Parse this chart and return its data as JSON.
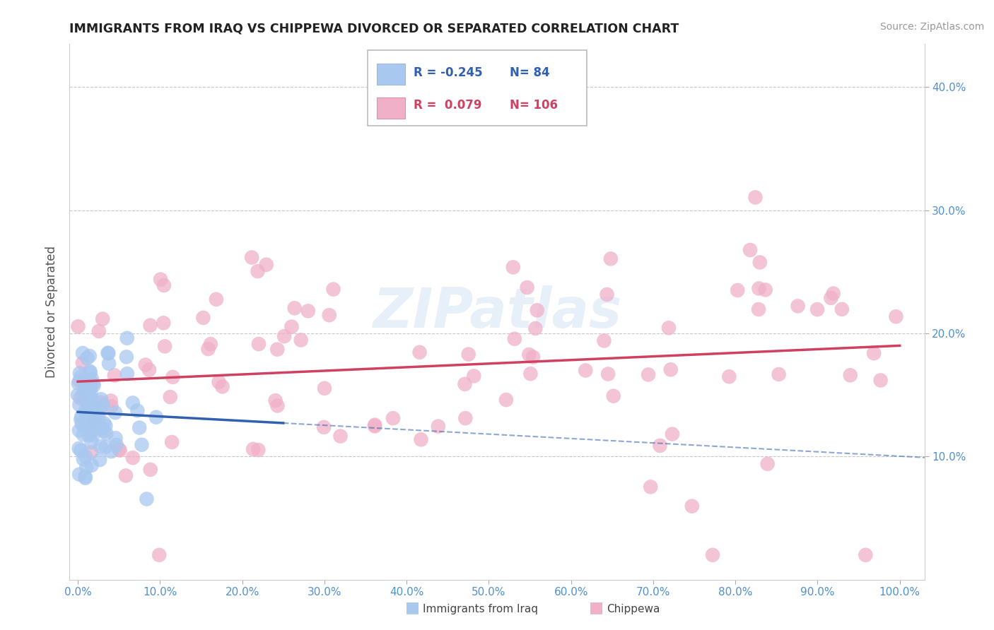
{
  "title": "IMMIGRANTS FROM IRAQ VS CHIPPEWA DIVORCED OR SEPARATED CORRELATION CHART",
  "source_text": "Source: ZipAtlas.com",
  "ylabel": "Divorced or Separated",
  "xlim": [
    0.0,
    1.0
  ],
  "ylim": [
    0.0,
    0.42
  ],
  "xticks": [
    0.0,
    0.1,
    0.2,
    0.3,
    0.4,
    0.5,
    0.6,
    0.7,
    0.8,
    0.9,
    1.0
  ],
  "xticklabels": [
    "0.0%",
    "10.0%",
    "20.0%",
    "30.0%",
    "40.0%",
    "50.0%",
    "60.0%",
    "70.0%",
    "80.0%",
    "90.0%",
    "100.0%"
  ],
  "yticks": [
    0.1,
    0.2,
    0.3,
    0.4
  ],
  "yticklabels": [
    "10.0%",
    "20.0%",
    "30.0%",
    "40.0%"
  ],
  "grid_color": "#c8c8c8",
  "iraq_color": "#a8c8f0",
  "chippewa_color": "#f0b0c8",
  "iraq_line_color": "#3060b0",
  "chippewa_line_color": "#d04060",
  "tick_color": "#5090d0",
  "legend_iraq_r": "-0.245",
  "legend_iraq_n": "84",
  "legend_chippewa_r": "0.079",
  "legend_chippewa_n": "106",
  "iraq_label": "Immigrants from Iraq",
  "chippewa_label": "Chippewa"
}
